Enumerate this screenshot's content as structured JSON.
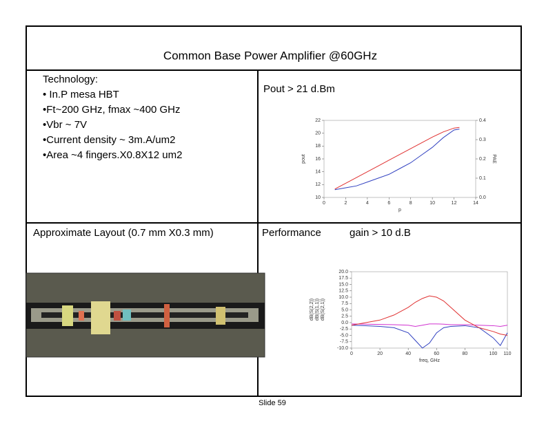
{
  "slide": {
    "title": "Common Base Power Amplifier @60GHz",
    "technology": {
      "heading": "Technology:",
      "items": [
        "• In.P mesa HBT",
        "•Ft~200 GHz, fmax ~400 GHz",
        "•Vbr ~ 7V",
        "•Current density ~ 3m.A/um2",
        "•Area ~4 fingers.X0.8X12 um2"
      ]
    },
    "pout_note": "Pout > 21 d.Bm",
    "layout_caption": "Approximate Layout (0.7 mm X0.3 mm)",
    "performance_label": "Performance",
    "gain_note": "gain > 10 d.B",
    "footer": "Slide 59"
  },
  "chart_data": [
    {
      "type": "line",
      "xlabel": "p",
      "ylabel": "pout",
      "y2label": "PAE",
      "x": [
        1,
        2,
        3,
        4,
        5,
        6,
        7,
        8,
        9,
        10,
        11,
        12,
        12.5
      ],
      "series": [
        {
          "name": "pout",
          "color": "#e03030",
          "values": [
            11.3,
            12.2,
            13.1,
            14.0,
            14.9,
            15.8,
            16.7,
            17.6,
            18.5,
            19.4,
            20.2,
            20.8,
            20.9
          ]
        },
        {
          "name": "PAE",
          "color": "#3040c0",
          "axis": "y2",
          "values": [
            0.04,
            0.05,
            0.06,
            0.08,
            0.1,
            0.12,
            0.15,
            0.18,
            0.22,
            0.26,
            0.31,
            0.35,
            0.355
          ]
        }
      ],
      "xlim": [
        0,
        14
      ],
      "xticks": [
        0,
        2,
        4,
        6,
        8,
        10,
        12,
        14
      ],
      "ylim": [
        10,
        22
      ],
      "yticks": [
        10,
        12,
        14,
        16,
        18,
        20,
        22
      ],
      "y2lim": [
        0,
        0.4
      ],
      "y2ticks": [
        {
          "value": 0,
          "label": "0.0"
        },
        0.1,
        0.2,
        0.3,
        0.4
      ]
    },
    {
      "type": "line",
      "xlabel": "freq, GHz",
      "x": [
        0,
        10,
        20,
        30,
        40,
        45,
        50,
        55,
        60,
        65,
        70,
        80,
        90,
        100,
        105,
        110
      ],
      "series": [
        {
          "name": "dB(S(2,2))",
          "color": "#d030d0",
          "values": [
            -0.5,
            -0.6,
            -0.7,
            -0.8,
            -1,
            -1.5,
            -1,
            -0.5,
            -0.5,
            -0.6,
            -0.8,
            -0.8,
            -1,
            -1.2,
            -1.5,
            -1
          ]
        },
        {
          "name": "dB(S(1,1))",
          "color": "#3040c0",
          "values": [
            -1,
            -1.2,
            -1.5,
            -2,
            -4,
            -7,
            -10,
            -8,
            -4,
            -2,
            -1.5,
            -1.2,
            -2,
            -6,
            -9,
            -4
          ]
        },
        {
          "name": "dB(S(2,1))",
          "color": "#e03030",
          "values": [
            -1,
            0,
            1,
            3,
            6,
            8,
            9.5,
            10.5,
            10,
            8.5,
            6,
            1,
            -2,
            -3.5,
            -4.5,
            -5
          ]
        }
      ],
      "xlim": [
        0,
        110
      ],
      "xticks": [
        0,
        20,
        40,
        60,
        80,
        100,
        110
      ],
      "ylim": [
        -10,
        20
      ],
      "yticks": [
        {
          "value": -10,
          "label": "-10.0"
        },
        -7.5,
        {
          "value": -5,
          "label": "-5.0"
        },
        -2.5,
        {
          "value": 0,
          "label": "0.0"
        },
        2.5,
        {
          "value": 5,
          "label": "5.0"
        },
        7.5,
        {
          "value": 10,
          "label": "10.0"
        },
        12.5,
        {
          "value": 15,
          "label": "15.0"
        },
        17.5,
        {
          "value": 20,
          "label": "20.0"
        }
      ]
    }
  ]
}
